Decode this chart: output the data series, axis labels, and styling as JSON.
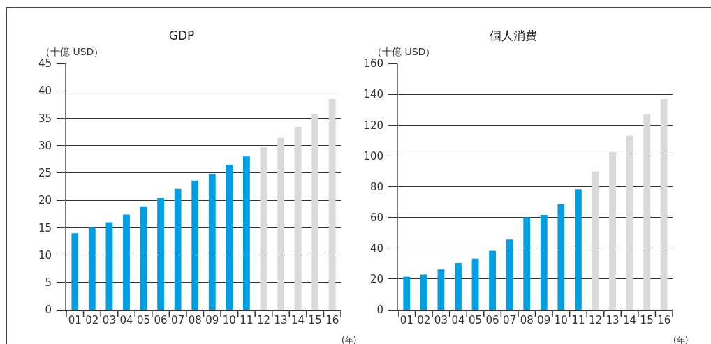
{
  "chart_data": [
    {
      "type": "bar",
      "title": "GDP",
      "ylabel": "（十億 USD）",
      "xlabel": "(年)",
      "categories": [
        "01",
        "02",
        "03",
        "04",
        "05",
        "06",
        "07",
        "08",
        "09",
        "10",
        "11",
        "12",
        "13",
        "14",
        "15",
        "16"
      ],
      "values": [
        14.0,
        15.0,
        16.0,
        17.4,
        18.9,
        20.4,
        22.1,
        23.6,
        24.8,
        26.5,
        28.0,
        29.7,
        31.4,
        33.4,
        35.8,
        38.5
      ],
      "colors": [
        "#009fe3",
        "#009fe3",
        "#009fe3",
        "#009fe3",
        "#009fe3",
        "#009fe3",
        "#009fe3",
        "#009fe3",
        "#009fe3",
        "#009fe3",
        "#009fe3",
        "#d9dada",
        "#d9dada",
        "#d9dada",
        "#d9dada",
        "#d9dada"
      ],
      "ylim": [
        0,
        45
      ],
      "yticks": [
        0,
        5,
        10,
        15,
        20,
        25,
        30,
        35,
        40,
        45
      ],
      "grid": "y"
    },
    {
      "type": "bar",
      "title": "個人消費",
      "ylabel": "（十億 USD）",
      "xlabel": "(年)",
      "categories": [
        "01",
        "02",
        "03",
        "04",
        "05",
        "06",
        "07",
        "08",
        "09",
        "10",
        "11",
        "12",
        "13",
        "14",
        "15",
        "16"
      ],
      "values": [
        21.5,
        22.9,
        26.2,
        30.4,
        33.2,
        38.3,
        45.7,
        60.2,
        61.6,
        68.5,
        78.3,
        89.9,
        102.6,
        113.0,
        127.1,
        136.9
      ],
      "colors": [
        "#009fe3",
        "#009fe3",
        "#009fe3",
        "#009fe3",
        "#009fe3",
        "#009fe3",
        "#009fe3",
        "#009fe3",
        "#009fe3",
        "#009fe3",
        "#009fe3",
        "#d9dada",
        "#d9dada",
        "#d9dada",
        "#d9dada",
        "#d9dada"
      ],
      "ylim": [
        0,
        160
      ],
      "yticks": [
        0,
        20,
        40,
        60,
        80,
        100,
        120,
        140,
        160
      ],
      "grid": "y"
    }
  ]
}
